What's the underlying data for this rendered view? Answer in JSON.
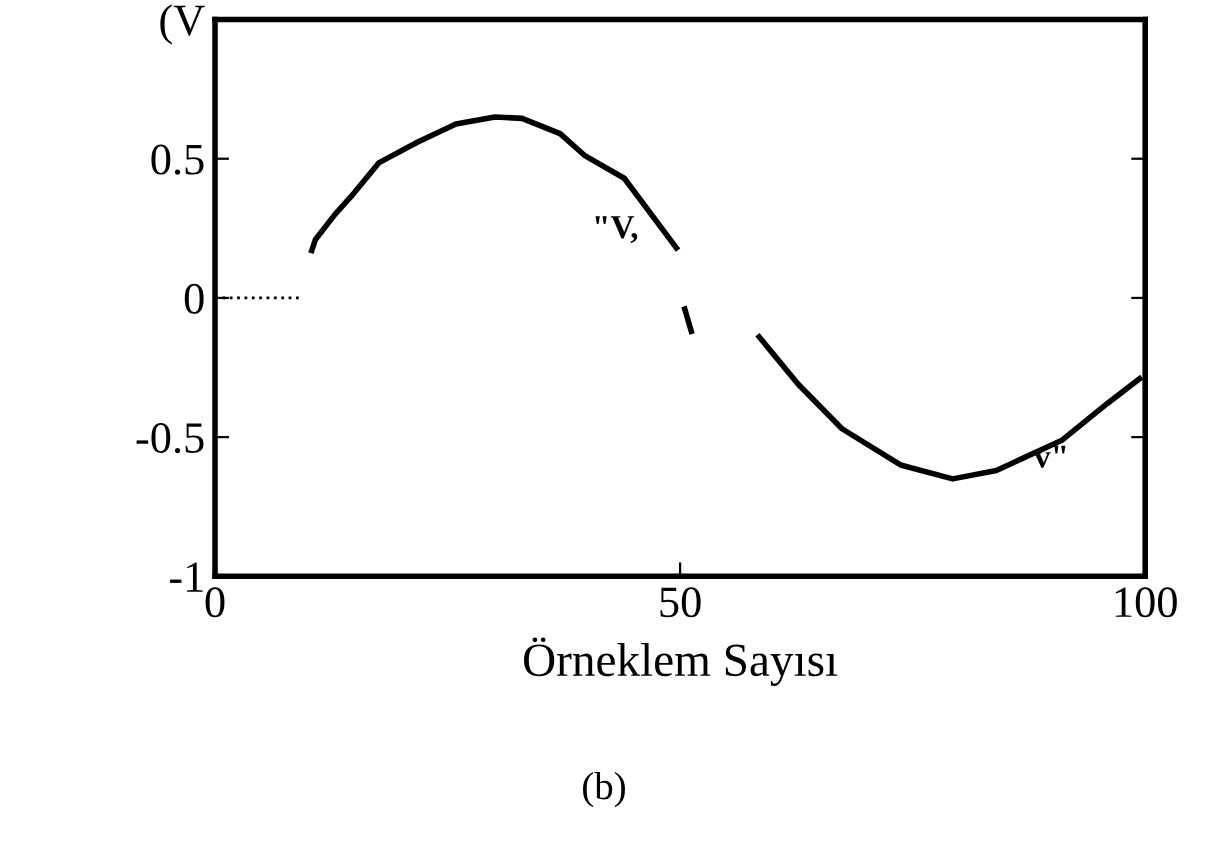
{
  "chart_data": {
    "type": "line",
    "xlabel": "Örneklem Sayısı",
    "annotations": [
      "\"V,",
      "v\"",
      "(b)"
    ],
    "xlim": [
      0,
      100
    ],
    "ylim": [
      -1,
      1
    ],
    "xticks": [
      0,
      50,
      100
    ],
    "yticks": [
      -1,
      -0.5,
      0,
      0.5,
      {
        "value": 1,
        "label": "(V"
      }
    ],
    "grid": false,
    "legend": false,
    "series": [
      {
        "color": "#000000",
        "line_style": "dotted",
        "x": [
          0,
          9
        ],
        "values": [
          0,
          0
        ]
      },
      {
        "color": "#000000",
        "line_style": "solid",
        "x": [
          10.4,
          10.8,
          12.9,
          14.9,
          17.6,
          21.8,
          25.9,
          30.1,
          33,
          37.1,
          39.8,
          44,
          49.6,
          50,
          50.5,
          51.2,
          55,
          58.5,
          62.7,
          67.4,
          73.7,
          79.3,
          84,
          91.1,
          95.9,
          99.4
        ],
        "values": [
          0.17,
          0.21,
          0.3,
          0.375,
          0.485,
          0.56,
          0.625,
          0.65,
          0.645,
          0.59,
          0.51,
          0.43,
          0.18,
          null,
          -0.04,
          -0.12,
          null,
          -0.14,
          -0.31,
          -0.47,
          -0.6,
          -0.65,
          -0.62,
          -0.51,
          -0.38,
          -0.29
        ]
      }
    ]
  }
}
